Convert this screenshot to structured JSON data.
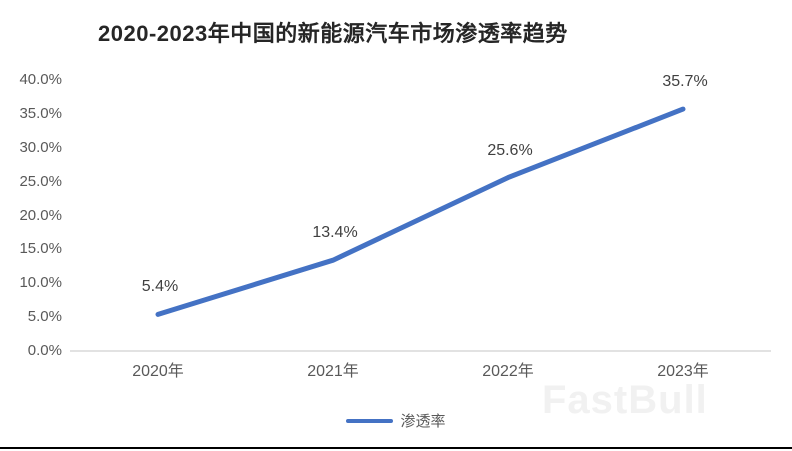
{
  "page": {
    "background": "#ffffff",
    "bottom_border_color": "#000000"
  },
  "chart_data": {
    "type": "line",
    "title": "2020-2023年中国的新能源汽车市场渗透率趋势",
    "categories": [
      "2020年",
      "2021年",
      "2022年",
      "2023年"
    ],
    "series": [
      {
        "name": "渗透率",
        "values": [
          5.4,
          13.4,
          25.6,
          35.7
        ],
        "color": "#4472C4"
      }
    ],
    "data_labels": [
      "5.4%",
      "13.4%",
      "25.6%",
      "35.7%"
    ],
    "y_ticks": [
      {
        "label": "40.0%",
        "value": 40
      },
      {
        "label": "35.0%",
        "value": 35
      },
      {
        "label": "30.0%",
        "value": 30
      },
      {
        "label": "25.0%",
        "value": 25
      },
      {
        "label": "20.0%",
        "value": 20
      },
      {
        "label": "15.0%",
        "value": 15
      },
      {
        "label": "10.0%",
        "value": 10
      },
      {
        "label": "5.0%",
        "value": 5
      },
      {
        "label": "0.0%",
        "value": 0
      }
    ],
    "ylim": [
      0,
      40
    ],
    "xlabel": "",
    "ylabel": "",
    "grid": false,
    "legend_position": "bottom",
    "colors": {
      "line": "#4472C4",
      "axis_line": "#D9D9D9",
      "tick_label": "#595959",
      "data_label": "#404040",
      "title": "#262626"
    }
  },
  "legend": {
    "label": "渗透率"
  },
  "watermark": {
    "text": "FastBull"
  }
}
